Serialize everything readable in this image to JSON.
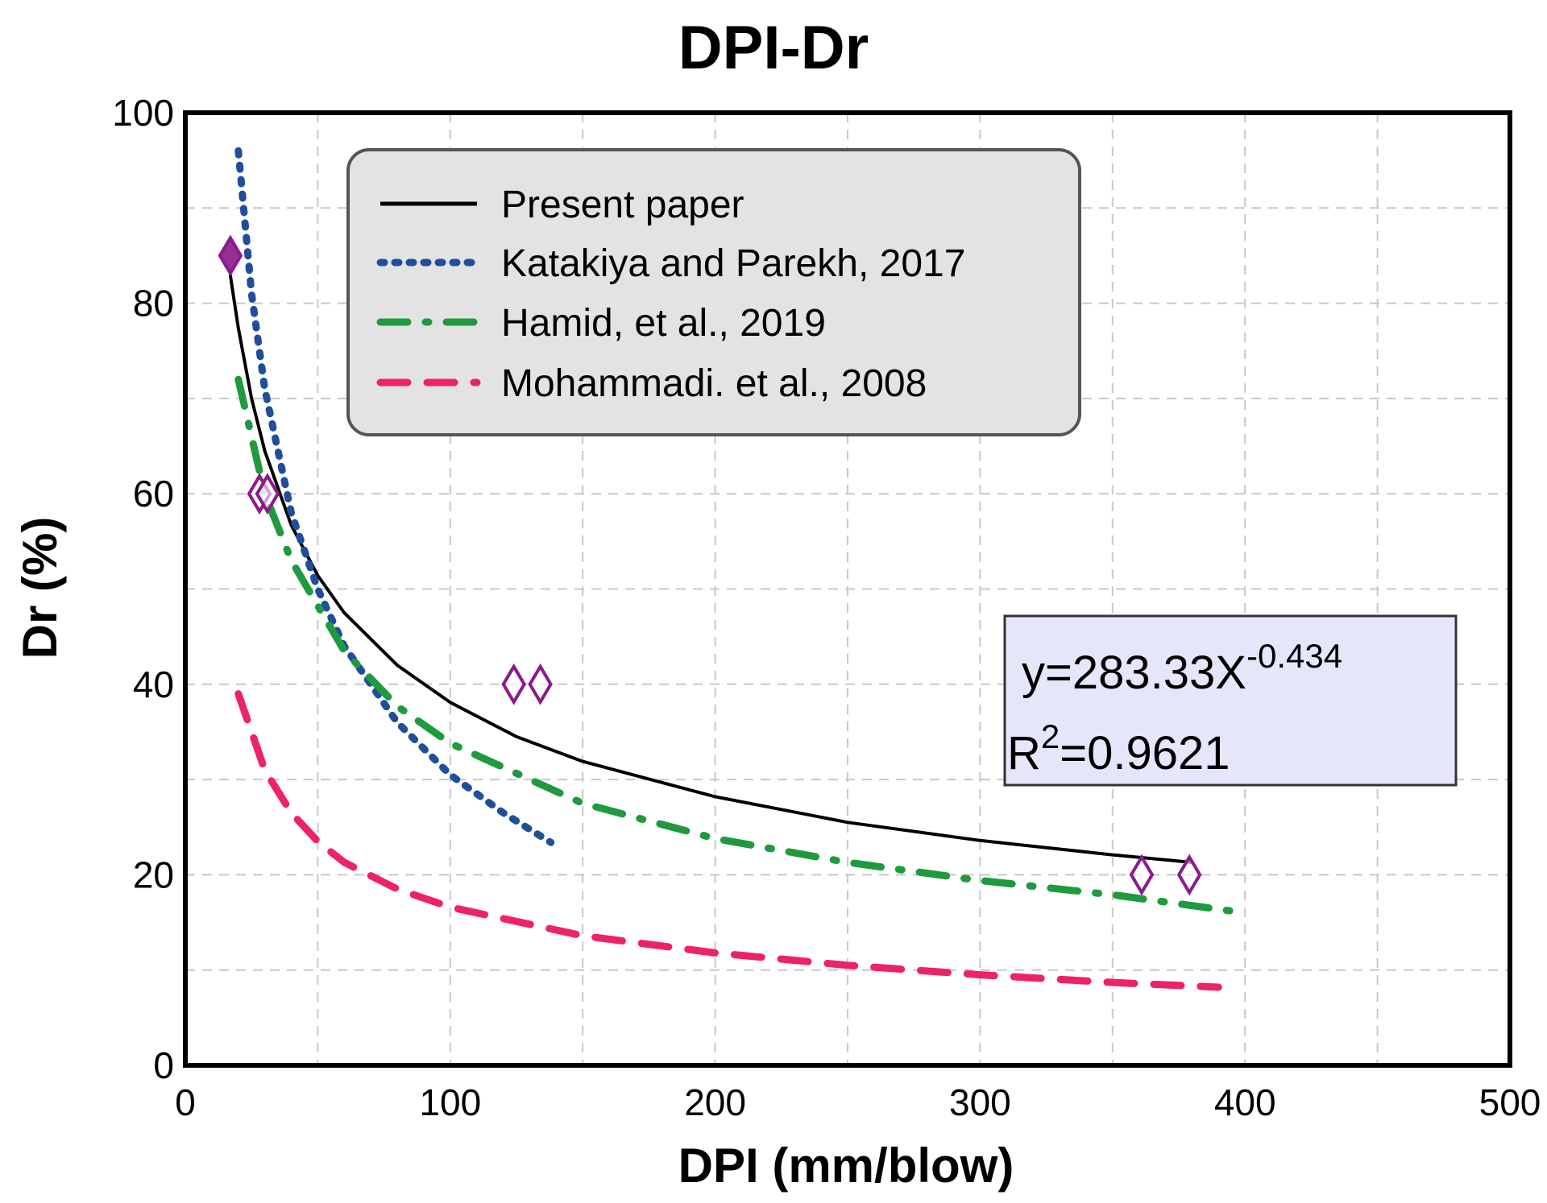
{
  "chart_data": {
    "type": "line",
    "title": "DPI-Dr",
    "xlabel": "DPI (mm/blow)",
    "ylabel": "Dr (%)",
    "xlim": [
      0,
      500
    ],
    "ylim": [
      0,
      100
    ],
    "xticks": [
      0,
      100,
      200,
      300,
      400,
      500
    ],
    "yticks": [
      0,
      20,
      40,
      60,
      80,
      100
    ],
    "grid": true,
    "legend_position": "top",
    "series": [
      {
        "name": "Present paper",
        "style": "solid",
        "color": "#000000",
        "x": [
          17,
          20,
          25,
          30,
          40,
          50,
          60,
          80,
          100,
          125,
          150,
          200,
          250,
          300,
          350,
          380
        ],
        "y": [
          82.9,
          77.4,
          70.0,
          64.5,
          56.7,
          51.4,
          47.5,
          42.0,
          38.1,
          34.5,
          31.9,
          28.2,
          25.5,
          23.6,
          22.1,
          21.3
        ]
      },
      {
        "name": "Katakiya and Parekh, 2017",
        "style": "dotted",
        "color": "#1f4e9a",
        "x": [
          20,
          25,
          30,
          40,
          50,
          60,
          80,
          100,
          120,
          138
        ],
        "y": [
          96,
          81,
          71,
          58,
          50,
          44,
          36,
          30.5,
          26.5,
          23.4
        ]
      },
      {
        "name": "Hamid, et al., 2019",
        "style": "dashdot",
        "color": "#1f9a3f",
        "x": [
          20,
          30,
          40,
          60,
          80,
          100,
          150,
          200,
          250,
          300,
          350,
          400
        ],
        "y": [
          72,
          60,
          53,
          43.5,
          37.7,
          33.8,
          27.5,
          23.8,
          21.3,
          19.4,
          17.9,
          16.0
        ]
      },
      {
        "name": "Mohammadi. et al., 2008",
        "style": "dashed",
        "color": "#ee2266",
        "x": [
          20,
          30,
          40,
          50,
          60,
          80,
          100,
          150,
          200,
          250,
          300,
          350,
          390
        ],
        "y": [
          39,
          31,
          26.5,
          23.5,
          21.3,
          18.5,
          16.6,
          13.6,
          11.8,
          10.5,
          9.5,
          8.7,
          8.2
        ]
      }
    ],
    "markers": {
      "name": "data points",
      "shape": "diamond",
      "color": "#8b1a8b",
      "x": [
        17,
        28,
        31,
        124,
        134,
        361,
        379
      ],
      "y": [
        85,
        60,
        60,
        40,
        40,
        20,
        20
      ]
    },
    "annotation": {
      "equation": "y=283.33X",
      "exponent": "-0.434",
      "r2_base": "R",
      "r2_exp": "2",
      "r2_value": "=0.9621"
    }
  }
}
